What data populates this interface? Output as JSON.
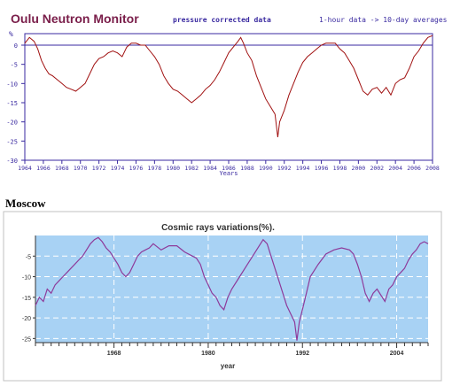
{
  "chart_data": [
    {
      "type": "line",
      "title": "Oulu Neutron Monitor",
      "subtitle": "pressure corrected data",
      "note": "1-hour data -> 10-day averages",
      "ylabel": "%",
      "xlabel": "Years",
      "xlim": [
        1964,
        2008
      ],
      "ylim": [
        -30,
        3
      ],
      "x_ticks": [
        1964,
        1966,
        1968,
        1970,
        1972,
        1974,
        1976,
        1978,
        1980,
        1982,
        1984,
        1986,
        1988,
        1990,
        1992,
        1994,
        1996,
        1998,
        2000,
        2002,
        2004,
        2006,
        2008
      ],
      "y_ticks": [
        0,
        -5,
        -10,
        -15,
        -20,
        -25,
        -30
      ],
      "reference_line": 0,
      "colors": {
        "title": "#7a1e4a",
        "subtitle": "#3a2aa0",
        "line": "#a01010",
        "axes": "#3a2aa0",
        "zero_line": "#3a2aa0"
      },
      "series": [
        {
          "x": [
            1964.0,
            1964.5,
            1965.0,
            1965.4,
            1965.8,
            1966.2,
            1966.6,
            1967.0,
            1967.5,
            1968.0,
            1968.5,
            1969.0,
            1969.5,
            1970.0,
            1970.5,
            1971.0,
            1971.5,
            1972.0,
            1972.5,
            1973.0,
            1973.5,
            1974.0,
            1974.5,
            1975.0,
            1975.5,
            1976.0,
            1976.5,
            1977.0,
            1977.5,
            1978.0,
            1978.5,
            1979.0,
            1979.5,
            1980.0,
            1980.5,
            1981.0,
            1981.5,
            1982.0,
            1982.5,
            1983.0,
            1983.5,
            1984.0,
            1984.5,
            1985.0,
            1985.5,
            1986.0,
            1986.5,
            1987.0,
            1987.3,
            1987.6,
            1988.0,
            1988.5,
            1989.0,
            1989.5,
            1990.0,
            1990.5,
            1991.0,
            1991.3,
            1991.5,
            1992.0,
            1992.5,
            1993.0,
            1993.5,
            1994.0,
            1994.5,
            1995.0,
            1995.5,
            1996.0,
            1996.5,
            1997.0,
            1997.5,
            1998.0,
            1998.5,
            1999.0,
            1999.5,
            2000.0,
            2000.5,
            2001.0,
            2001.5,
            2002.0,
            2002.5,
            2003.0,
            2003.5,
            2004.0,
            2004.5,
            2005.0,
            2005.5,
            2006.0,
            2006.5,
            2007.0,
            2007.5,
            2008.0
          ],
          "y": [
            0.5,
            2.0,
            1.0,
            -1.0,
            -4.0,
            -6.0,
            -7.5,
            -8.0,
            -9.0,
            -10.0,
            -11.0,
            -11.5,
            -12.0,
            -11.0,
            -10.0,
            -7.5,
            -5.0,
            -3.5,
            -3.0,
            -2.0,
            -1.5,
            -2.0,
            -3.0,
            -0.5,
            0.5,
            0.5,
            0.0,
            0.0,
            -1.5,
            -3.0,
            -5.0,
            -8.0,
            -10.0,
            -11.5,
            -12.0,
            -13.0,
            -14.0,
            -15.0,
            -14.0,
            -13.0,
            -11.5,
            -10.5,
            -9.0,
            -7.0,
            -4.5,
            -2.0,
            -0.5,
            1.0,
            2.0,
            0.5,
            -2.0,
            -4.0,
            -8.0,
            -11.0,
            -14.0,
            -16.0,
            -18.0,
            -24.0,
            -20.0,
            -17.0,
            -13.0,
            -10.0,
            -7.0,
            -4.5,
            -3.0,
            -2.0,
            -1.0,
            0.0,
            0.5,
            0.5,
            0.5,
            -1.0,
            -2.0,
            -4.0,
            -6.0,
            -9.0,
            -12.0,
            -13.0,
            -11.5,
            -11.0,
            -12.5,
            -11.0,
            -13.0,
            -10.0,
            -9.0,
            -8.5,
            -6.0,
            -3.0,
            -1.5,
            0.5,
            2.0,
            2.5
          ]
        }
      ]
    },
    {
      "type": "line",
      "title": "Cosmic rays variations(%).",
      "label": "Moscow",
      "xlabel": "year",
      "xlim": [
        1958,
        2008
      ],
      "ylim": [
        -26,
        0
      ],
      "x_tick_labels": [
        "1968",
        "1980",
        "1992",
        "2004"
      ],
      "y_tick_labels": [
        "-5",
        "-10",
        "-15",
        "-20",
        "-25"
      ],
      "colors": {
        "background": "#a8d2f4",
        "line": "#8e3a9a",
        "grid": "#ffffff"
      },
      "series": [
        {
          "x": [
            1958.0,
            1958.5,
            1959.0,
            1959.5,
            1960.0,
            1960.5,
            1961.0,
            1961.5,
            1962.0,
            1962.5,
            1963.0,
            1963.5,
            1964.0,
            1964.5,
            1965.0,
            1965.5,
            1966.0,
            1966.5,
            1967.0,
            1967.5,
            1968.0,
            1968.5,
            1969.0,
            1969.5,
            1970.0,
            1970.5,
            1971.0,
            1971.5,
            1972.0,
            1972.5,
            1973.0,
            1974.0,
            1975.0,
            1976.0,
            1977.0,
            1978.0,
            1978.5,
            1979.0,
            1979.5,
            1980.0,
            1980.5,
            1981.0,
            1981.5,
            1982.0,
            1982.5,
            1983.0,
            1984.0,
            1985.0,
            1986.0,
            1986.5,
            1987.0,
            1987.5,
            1988.0,
            1988.5,
            1989.0,
            1989.5,
            1990.0,
            1990.5,
            1991.0,
            1991.3,
            1991.6,
            1992.0,
            1992.5,
            1993.0,
            1994.0,
            1995.0,
            1996.0,
            1997.0,
            1998.0,
            1998.5,
            1999.0,
            1999.5,
            2000.0,
            2000.5,
            2001.0,
            2001.5,
            2002.0,
            2002.5,
            2003.0,
            2003.5,
            2004.0,
            2004.5,
            2005.0,
            2005.5,
            2006.0,
            2006.5,
            2007.0,
            2007.5,
            2008.0
          ],
          "y": [
            -17.0,
            -15.0,
            -16.0,
            -13.0,
            -14.0,
            -12.0,
            -11.0,
            -10.0,
            -9.0,
            -8.0,
            -7.0,
            -6.0,
            -5.0,
            -3.5,
            -2.0,
            -1.0,
            -0.5,
            -1.5,
            -3.0,
            -4.0,
            -5.5,
            -7.0,
            -9.0,
            -10.0,
            -9.0,
            -7.0,
            -5.0,
            -4.0,
            -3.5,
            -3.0,
            -2.0,
            -3.5,
            -2.5,
            -2.5,
            -4.0,
            -5.0,
            -5.5,
            -7.0,
            -10.0,
            -12.0,
            -14.0,
            -15.0,
            -17.0,
            -18.0,
            -15.0,
            -13.0,
            -10.0,
            -7.0,
            -4.0,
            -2.5,
            -1.0,
            -2.0,
            -5.0,
            -8.0,
            -11.0,
            -14.0,
            -17.0,
            -19.0,
            -21.0,
            -25.5,
            -21.0,
            -18.0,
            -14.0,
            -10.0,
            -7.0,
            -4.5,
            -3.5,
            -3.0,
            -3.5,
            -4.5,
            -7.0,
            -10.0,
            -14.0,
            -16.0,
            -14.0,
            -13.0,
            -14.5,
            -16.0,
            -13.0,
            -12.0,
            -10.0,
            -9.0,
            -8.0,
            -6.0,
            -4.5,
            -3.5,
            -2.0,
            -1.5,
            -2.0
          ]
        }
      ]
    }
  ]
}
